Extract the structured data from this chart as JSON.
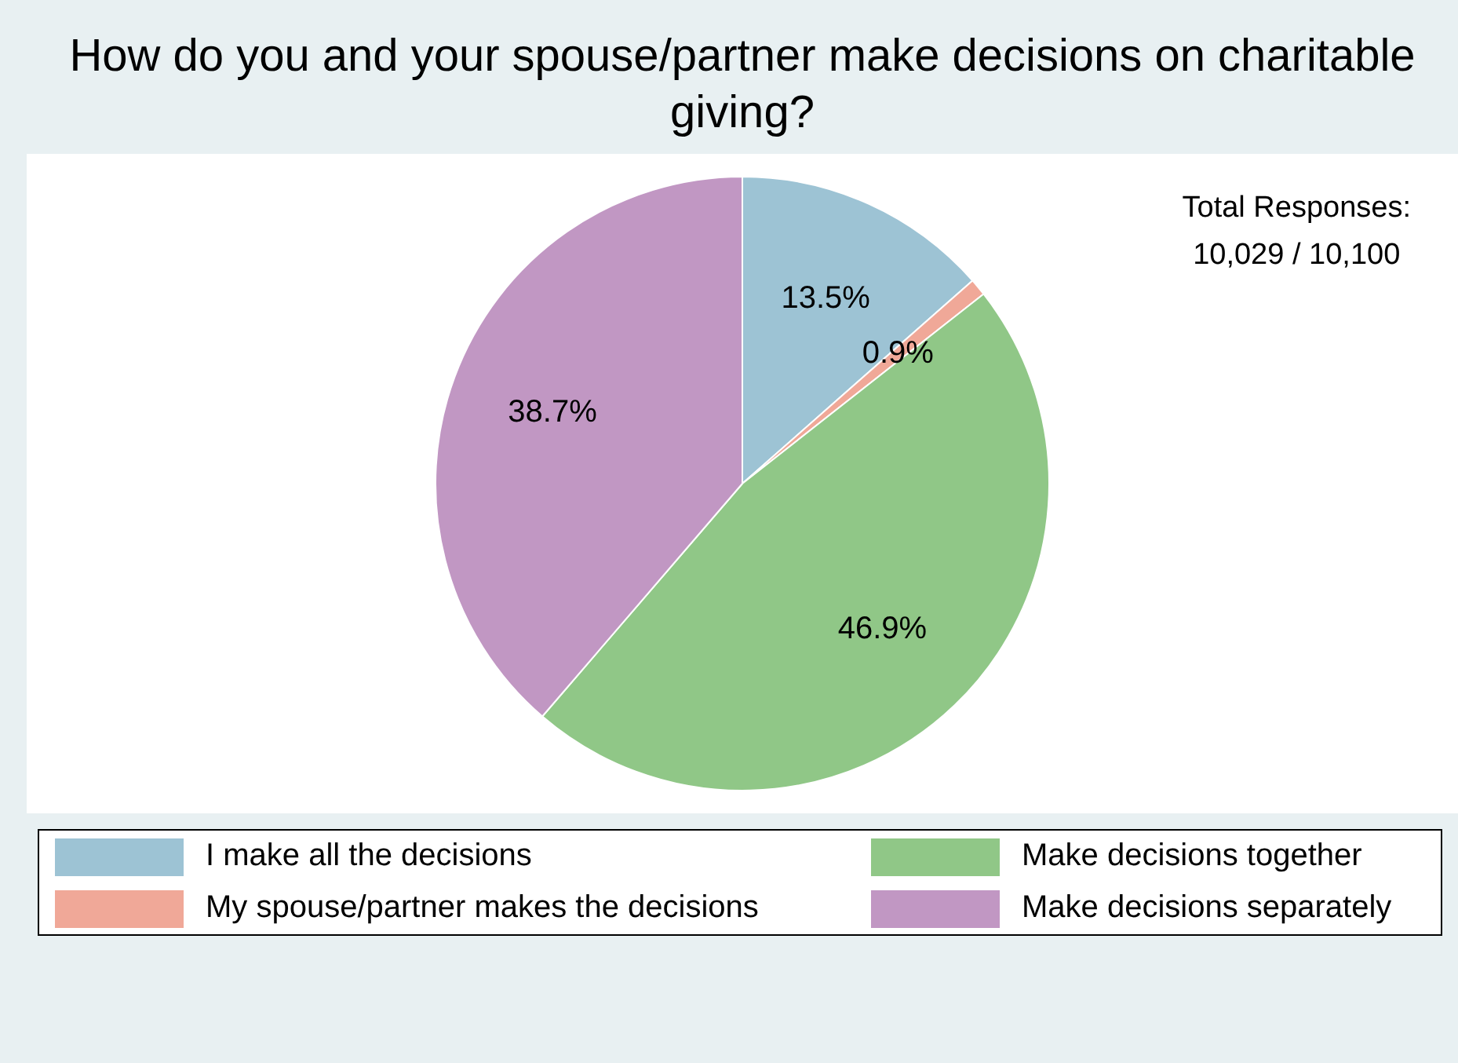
{
  "chart_data": {
    "type": "pie",
    "title": "How do you and your spouse/partner make decisions on charitable giving?",
    "categories": [
      "I make all the decisions",
      "My spouse/partner makes the decisions",
      "Make decisions together",
      "Make decisions separately"
    ],
    "values": [
      13.5,
      0.9,
      46.9,
      38.7
    ],
    "colors": [
      "#9dc3d4",
      "#f0a898",
      "#90c787",
      "#c197c3"
    ],
    "value_labels": [
      "13.5%",
      "0.9%",
      "46.9%",
      "38.7%"
    ],
    "annotations": [
      "Total Responses:",
      "10,029  / 10,100"
    ],
    "legend": "bottom"
  }
}
